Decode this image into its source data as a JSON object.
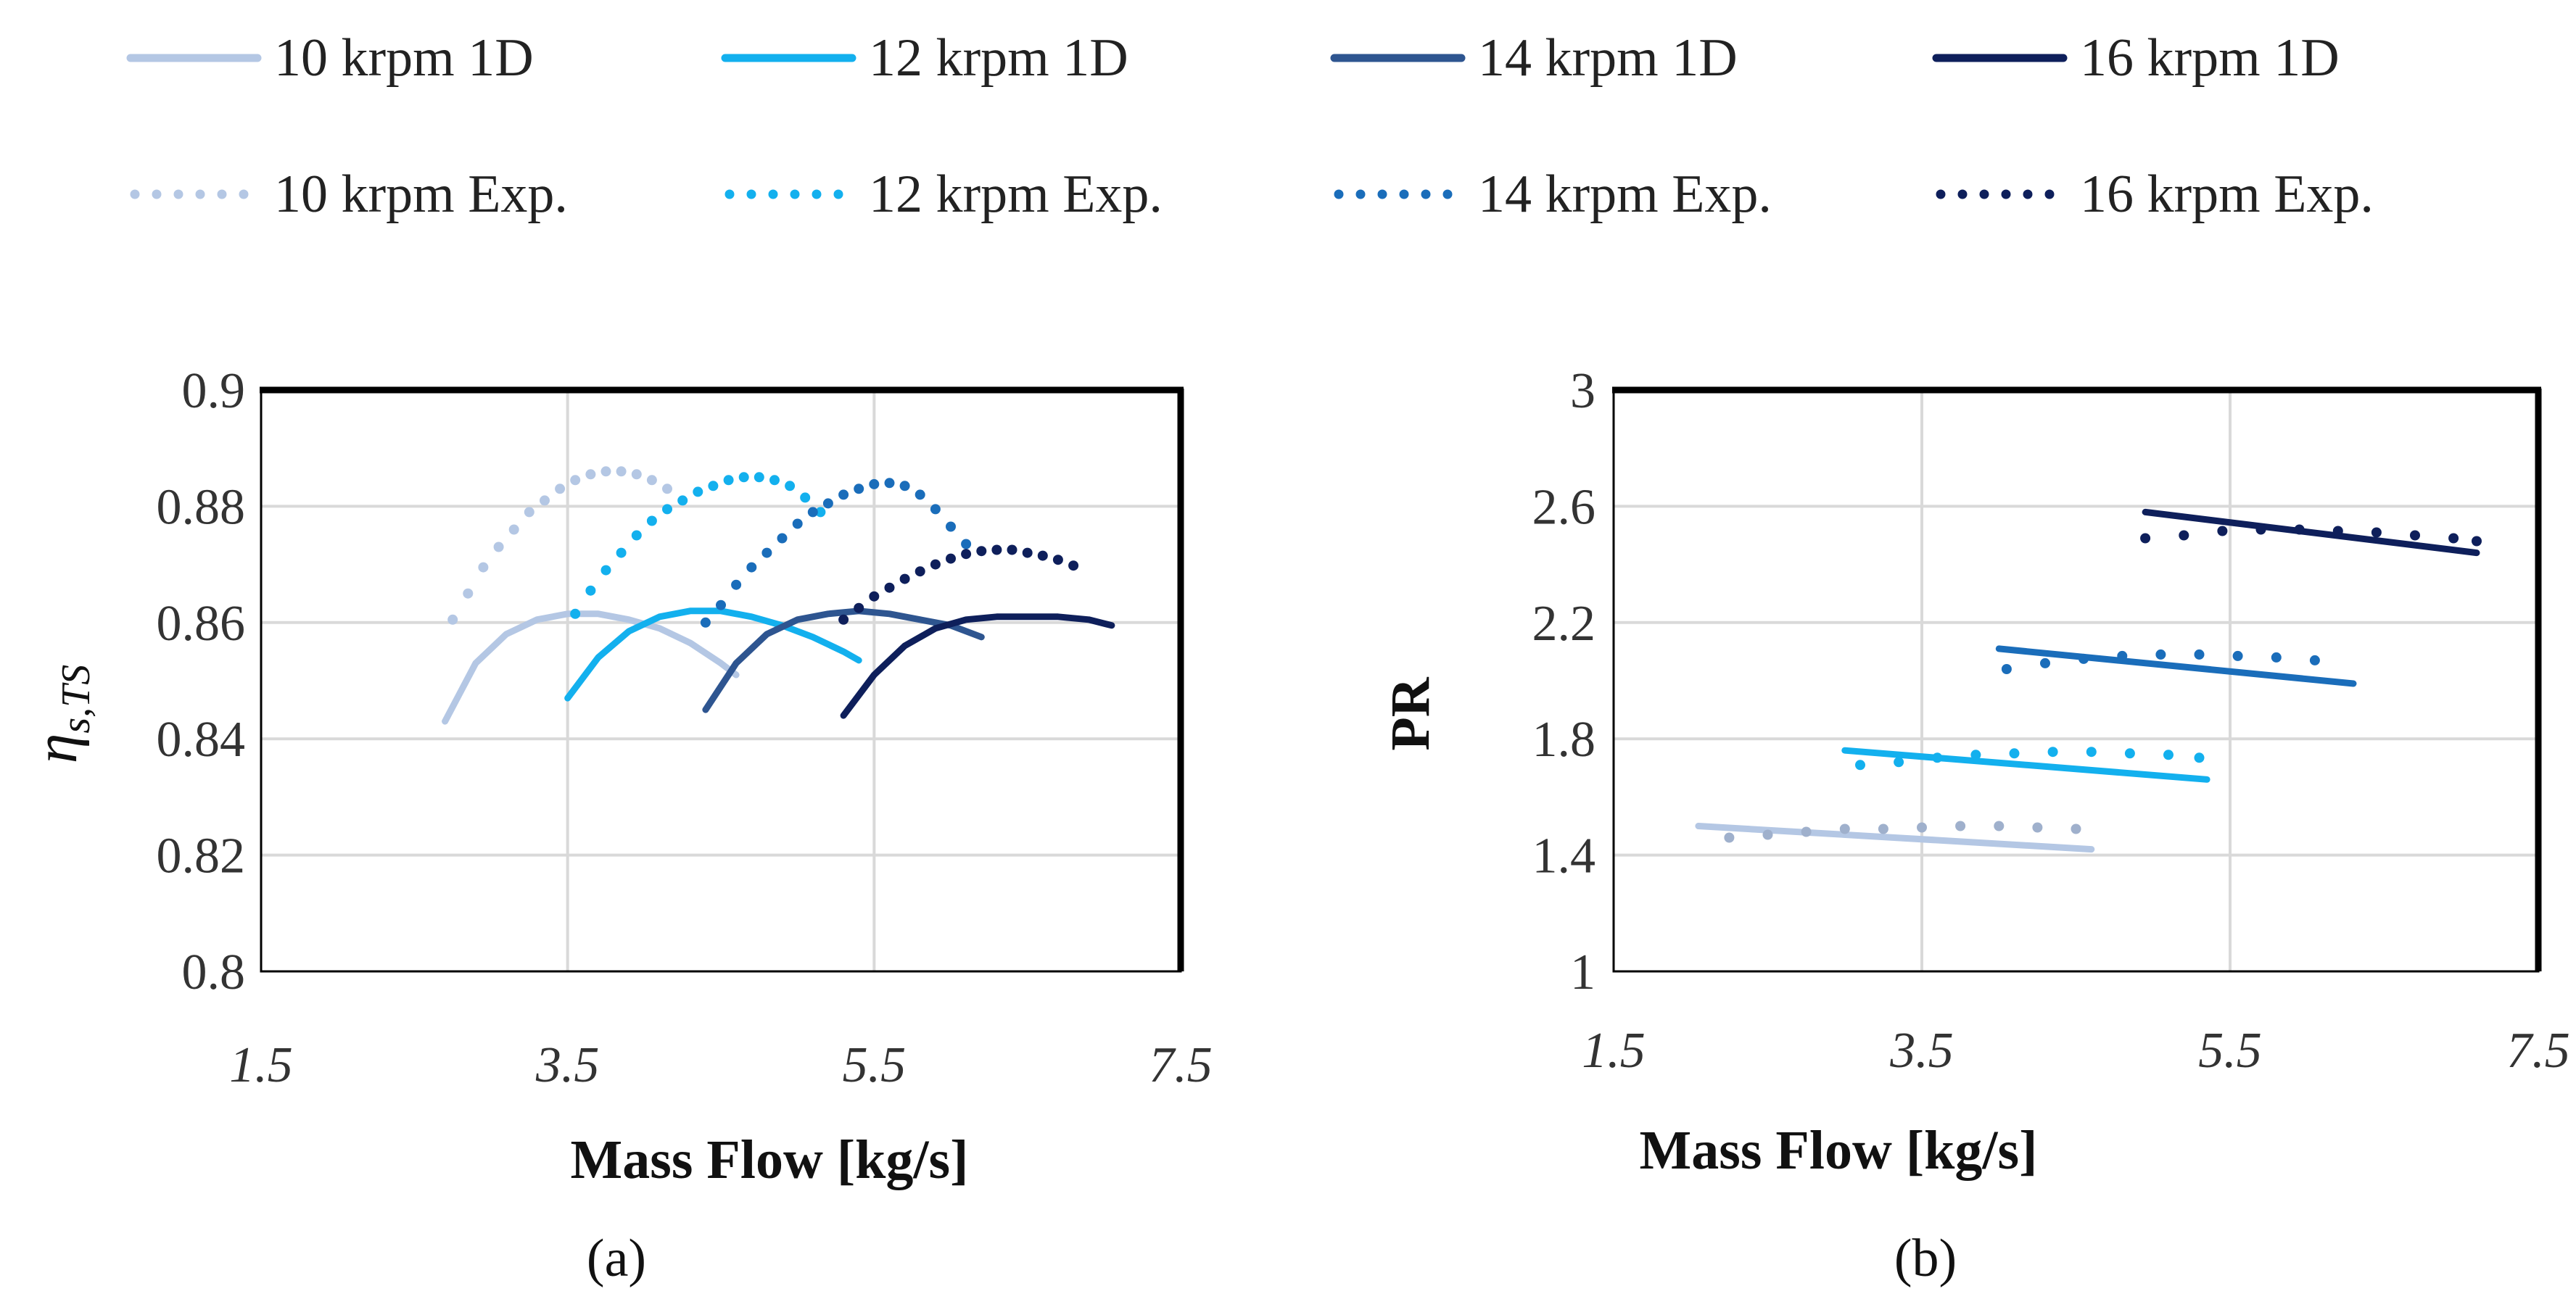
{
  "legend": [
    {
      "label": "10 krpm 1D",
      "color": "#b4c7e4",
      "style": "solid"
    },
    {
      "label": "12 krpm 1D",
      "color": "#13b0ee",
      "style": "solid"
    },
    {
      "label": "14 krpm 1D",
      "color": "#2e5590",
      "style": "solid"
    },
    {
      "label": "16 krpm 1D",
      "color": "#0e1f5b",
      "style": "solid"
    },
    {
      "label": "10 krpm Exp.",
      "color": "#b4c7e4",
      "style": "dotted"
    },
    {
      "label": "12 krpm Exp.",
      "color": "#13b0ee",
      "style": "dotted"
    },
    {
      "label": "14 krpm Exp.",
      "color": "#1a6dba",
      "style": "dotted"
    },
    {
      "label": "16 krpm Exp.",
      "color": "#0e1f5b",
      "style": "dotted"
    }
  ],
  "captions": {
    "a": "(a)",
    "b": "(b)"
  },
  "chart_data": [
    {
      "type": "line",
      "id": "a",
      "title": "",
      "xlabel": "Mass Flow [kg/s]",
      "ylabel_main": "η",
      "ylabel_sub": "s,TS",
      "xlim": [
        1.5,
        7.5
      ],
      "ylim": [
        0.8,
        0.9
      ],
      "xticks": [
        "1.5",
        "3.5",
        "5.5",
        "7.5"
      ],
      "yticks": [
        "0.8",
        "0.82",
        "0.84",
        "0.86",
        "0.88",
        "0.9"
      ],
      "grid": true,
      "series": [
        {
          "name": "10 krpm 1D",
          "color": "#b4c7e4",
          "style": "solid",
          "x": [
            2.7,
            2.9,
            3.1,
            3.3,
            3.5,
            3.7,
            3.9,
            4.1,
            4.3,
            4.5,
            4.6
          ],
          "y": [
            0.843,
            0.853,
            0.858,
            0.8605,
            0.8615,
            0.8615,
            0.8605,
            0.859,
            0.8565,
            0.853,
            0.851
          ]
        },
        {
          "name": "12 krpm 1D",
          "color": "#13b0ee",
          "style": "solid",
          "x": [
            3.5,
            3.7,
            3.9,
            4.1,
            4.3,
            4.5,
            4.7,
            4.9,
            5.1,
            5.3,
            5.4
          ],
          "y": [
            0.847,
            0.854,
            0.8585,
            0.861,
            0.862,
            0.862,
            0.861,
            0.8595,
            0.8575,
            0.855,
            0.8535
          ]
        },
        {
          "name": "14 krpm 1D",
          "color": "#2e5590",
          "style": "solid",
          "x": [
            4.4,
            4.6,
            4.8,
            5.0,
            5.2,
            5.4,
            5.6,
            5.8,
            6.0,
            6.2
          ],
          "y": [
            0.845,
            0.853,
            0.858,
            0.8605,
            0.8615,
            0.862,
            0.8615,
            0.8605,
            0.8595,
            0.8575
          ]
        },
        {
          "name": "16 krpm 1D",
          "color": "#0e1f5b",
          "style": "solid",
          "x": [
            5.3,
            5.5,
            5.7,
            5.9,
            6.1,
            6.3,
            6.5,
            6.7,
            6.9,
            7.05
          ],
          "y": [
            0.844,
            0.851,
            0.856,
            0.859,
            0.8605,
            0.861,
            0.861,
            0.861,
            0.8605,
            0.8595
          ]
        },
        {
          "name": "10 krpm Exp.",
          "color": "#b4c7e4",
          "style": "dotted",
          "x": [
            2.75,
            2.85,
            2.95,
            3.05,
            3.15,
            3.25,
            3.35,
            3.45,
            3.55,
            3.65,
            3.75,
            3.85,
            3.95,
            4.05,
            4.15
          ],
          "y": [
            0.8605,
            0.865,
            0.8695,
            0.873,
            0.876,
            0.879,
            0.881,
            0.883,
            0.8845,
            0.8855,
            0.886,
            0.886,
            0.8855,
            0.8845,
            0.883
          ]
        },
        {
          "name": "12 krpm Exp.",
          "color": "#13b0ee",
          "style": "dotted",
          "x": [
            3.55,
            3.65,
            3.75,
            3.85,
            3.95,
            4.05,
            4.15,
            4.25,
            4.35,
            4.45,
            4.55,
            4.65,
            4.75,
            4.85,
            4.95,
            5.05,
            5.15
          ],
          "y": [
            0.8615,
            0.8655,
            0.869,
            0.872,
            0.875,
            0.8775,
            0.8795,
            0.881,
            0.8825,
            0.8835,
            0.8845,
            0.885,
            0.885,
            0.8845,
            0.8835,
            0.8815,
            0.879
          ]
        },
        {
          "name": "14 krpm Exp.",
          "color": "#1a6dba",
          "style": "dotted",
          "x": [
            4.4,
            4.5,
            4.6,
            4.7,
            4.8,
            4.9,
            5.0,
            5.1,
            5.2,
            5.3,
            5.4,
            5.5,
            5.6,
            5.7,
            5.8,
            5.9,
            6.0,
            6.1
          ],
          "y": [
            0.86,
            0.863,
            0.8665,
            0.8695,
            0.872,
            0.8745,
            0.877,
            0.879,
            0.8805,
            0.882,
            0.883,
            0.8838,
            0.884,
            0.8835,
            0.882,
            0.8795,
            0.8765,
            0.8735
          ]
        },
        {
          "name": "16 krpm Exp.",
          "color": "#0e1f5b",
          "style": "dotted",
          "x": [
            5.3,
            5.4,
            5.5,
            5.6,
            5.7,
            5.8,
            5.9,
            6.0,
            6.1,
            6.2,
            6.3,
            6.4,
            6.5,
            6.6,
            6.7,
            6.8
          ],
          "y": [
            0.8605,
            0.8625,
            0.8645,
            0.866,
            0.8675,
            0.8688,
            0.87,
            0.871,
            0.8718,
            0.8723,
            0.8725,
            0.8725,
            0.872,
            0.8715,
            0.8708,
            0.8698
          ]
        }
      ]
    },
    {
      "type": "line",
      "id": "b",
      "title": "",
      "xlabel": "Mass Flow [kg/s]",
      "ylabel": "PR",
      "xlim": [
        1.5,
        7.5
      ],
      "ylim": [
        1,
        3
      ],
      "xticks": [
        "1.5",
        "3.5",
        "5.5",
        "7.5"
      ],
      "yticks": [
        "1",
        "1.4",
        "1.8",
        "2.2",
        "2.6",
        "3"
      ],
      "grid": true,
      "series": [
        {
          "name": "10 krpm 1D",
          "color": "#b4c7e4",
          "style": "solid",
          "x": [
            2.05,
            4.6
          ],
          "y": [
            1.5,
            1.42
          ]
        },
        {
          "name": "12 krpm 1D",
          "color": "#13b0ee",
          "style": "solid",
          "x": [
            3.0,
            5.35
          ],
          "y": [
            1.76,
            1.66
          ]
        },
        {
          "name": "14 krpm 1D",
          "color": "#1a6dba",
          "style": "solid",
          "x": [
            4.0,
            6.3
          ],
          "y": [
            2.11,
            1.99
          ]
        },
        {
          "name": "16 krpm 1D",
          "color": "#0e1f5b",
          "style": "solid",
          "x": [
            4.95,
            7.1
          ],
          "y": [
            2.58,
            2.44
          ]
        },
        {
          "name": "10 krpm Exp.",
          "color": "#9fb0cc",
          "style": "dotted",
          "x": [
            2.25,
            2.5,
            2.75,
            3.0,
            3.25,
            3.5,
            3.75,
            4.0,
            4.25,
            4.5
          ],
          "y": [
            1.46,
            1.47,
            1.48,
            1.49,
            1.49,
            1.495,
            1.5,
            1.5,
            1.495,
            1.49
          ]
        },
        {
          "name": "12 krpm Exp.",
          "color": "#13b0ee",
          "style": "dotted",
          "x": [
            3.1,
            3.35,
            3.6,
            3.85,
            4.1,
            4.35,
            4.6,
            4.85,
            5.1,
            5.3
          ],
          "y": [
            1.71,
            1.72,
            1.735,
            1.745,
            1.75,
            1.755,
            1.755,
            1.75,
            1.745,
            1.735
          ]
        },
        {
          "name": "14 krpm Exp.",
          "color": "#1a6dba",
          "style": "dotted",
          "x": [
            4.05,
            4.3,
            4.55,
            4.8,
            5.05,
            5.3,
            5.55,
            5.8,
            6.05
          ],
          "y": [
            2.04,
            2.06,
            2.075,
            2.085,
            2.09,
            2.09,
            2.085,
            2.08,
            2.07
          ]
        },
        {
          "name": "16 krpm Exp.",
          "color": "#0e1f5b",
          "style": "dotted",
          "x": [
            4.95,
            5.2,
            5.45,
            5.7,
            5.95,
            6.2,
            6.45,
            6.7,
            6.95,
            7.1
          ],
          "y": [
            2.49,
            2.5,
            2.515,
            2.52,
            2.52,
            2.515,
            2.51,
            2.5,
            2.49,
            2.48
          ]
        }
      ]
    }
  ]
}
